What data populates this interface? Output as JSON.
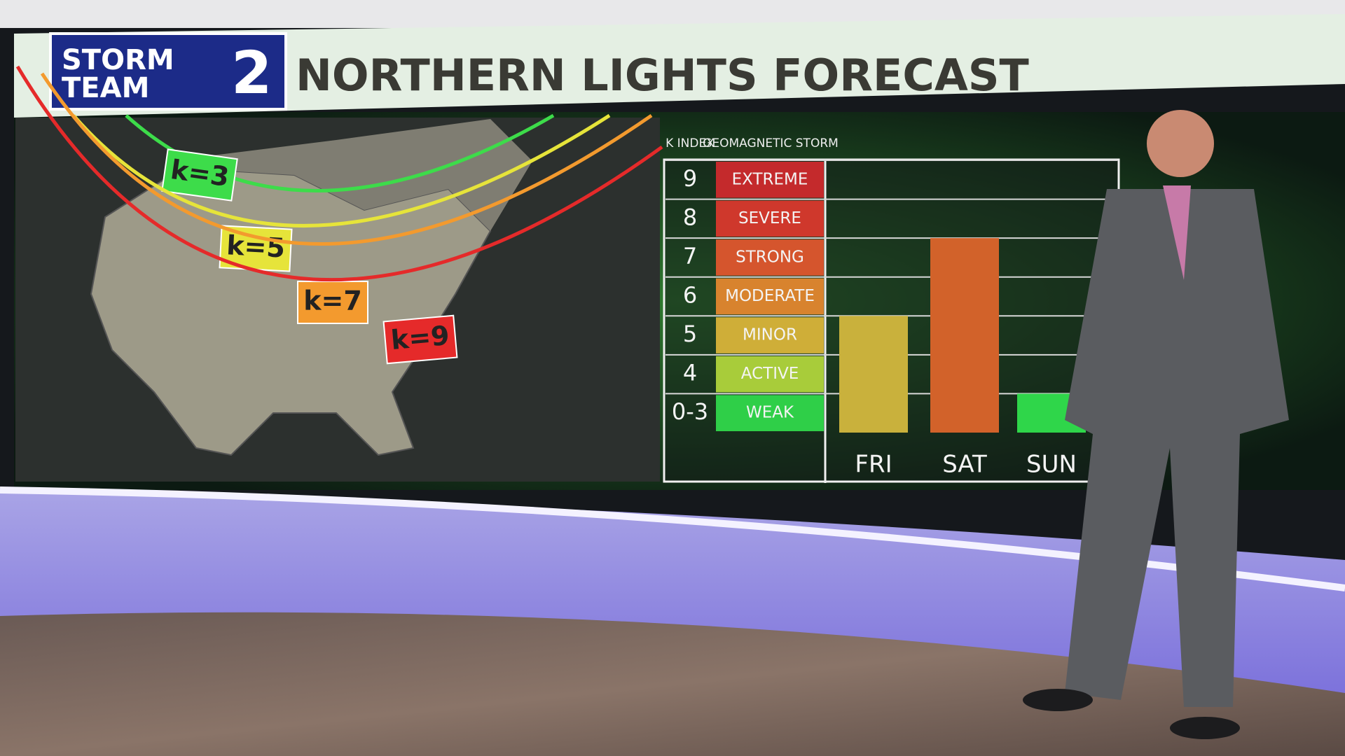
{
  "header": {
    "logo_line1": "STORM",
    "logo_line2": "TEAM",
    "logo_number": "2",
    "title": "NORTHERN LIGHTS FORECAST"
  },
  "map": {
    "labels": [
      "k=3",
      "k=5",
      "k=7",
      "k=9"
    ],
    "colors": [
      "#3ddc4a",
      "#e6e43a",
      "#f39a2e",
      "#e52a2a"
    ]
  },
  "chart_data": {
    "type": "bar",
    "index_header": "K INDEX",
    "storm_header": "GEOMAGNETIC STORM",
    "categories": [
      "FRI",
      "SAT",
      "SUN"
    ],
    "values": [
      5,
      7,
      3
    ],
    "colors": [
      "#c9b13c",
      "#d2622a",
      "#2fd64a"
    ],
    "ylim": [
      2,
      9
    ],
    "yticks": [
      9,
      8,
      7,
      6,
      5,
      4,
      {
        "value": 3,
        "label": "0-3"
      }
    ],
    "storm_levels": [
      "EXTREME",
      "SEVERE",
      "STRONG",
      "MODERATE",
      "MINOR",
      "ACTIVE",
      "WEAK"
    ],
    "level_colors": [
      "#c42a2c",
      "#cf382c",
      "#d5552d",
      "#d8832e",
      "#cfae38",
      "#a8cc3a",
      "#2fcf48"
    ],
    "grid": true
  }
}
